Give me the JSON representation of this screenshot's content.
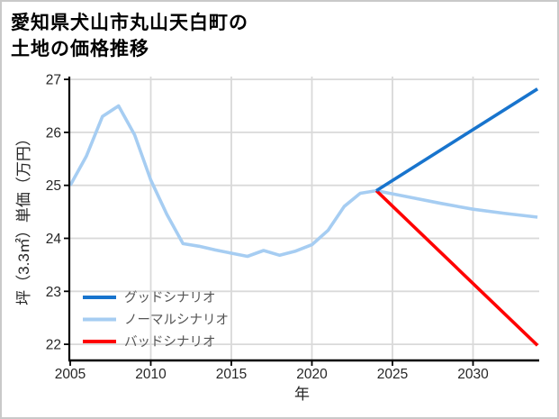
{
  "title": {
    "line1": "愛知県犬山市丸山天白町の",
    "line2": "土地の価格推移"
  },
  "chart_data": {
    "type": "line",
    "title": "愛知県犬山市丸山天白町の土地の価格推移",
    "xlabel": "年",
    "ylabel": "坪（3.3㎡）単価（万円）",
    "x_ticks": [
      2005,
      2010,
      2015,
      2020,
      2025,
      2030
    ],
    "y_ticks": [
      22,
      23,
      24,
      25,
      26,
      27
    ],
    "xlim": [
      2005,
      2034.1
    ],
    "ylim": [
      21.7,
      27.05
    ],
    "grid": true,
    "legend_position": "lower-left",
    "series": [
      {
        "name": "グッドシナリオ",
        "color": "#1874cd",
        "years": [
          2024,
          2034
        ],
        "values": [
          24.9,
          26.82
        ]
      },
      {
        "name": "ノーマルシナリオ",
        "color": "#a6cdf2",
        "years": [
          2005,
          2006,
          2007,
          2008,
          2009,
          2010,
          2011,
          2012,
          2013,
          2014,
          2015,
          2016,
          2017,
          2018,
          2019,
          2020,
          2021,
          2022,
          2023,
          2024,
          2025,
          2026,
          2028,
          2030,
          2032,
          2034
        ],
        "values": [
          25.0,
          25.55,
          26.3,
          26.5,
          25.95,
          25.1,
          24.45,
          23.9,
          23.85,
          23.78,
          23.72,
          23.66,
          23.77,
          23.68,
          23.76,
          23.88,
          24.15,
          24.6,
          24.85,
          24.9,
          24.84,
          24.78,
          24.66,
          24.55,
          24.47,
          24.4
        ]
      },
      {
        "name": "バッドシナリオ",
        "color": "#ff0000",
        "years": [
          2024,
          2034
        ],
        "values": [
          24.9,
          21.98
        ]
      }
    ],
    "colors": {
      "grid": "#d9d9d9",
      "spine": "#000000",
      "tick_label": "#262626",
      "axis_label": "#262626",
      "legend_text": "#555555",
      "background": "#ffffff",
      "frame_border": "#c9c9c9"
    }
  }
}
